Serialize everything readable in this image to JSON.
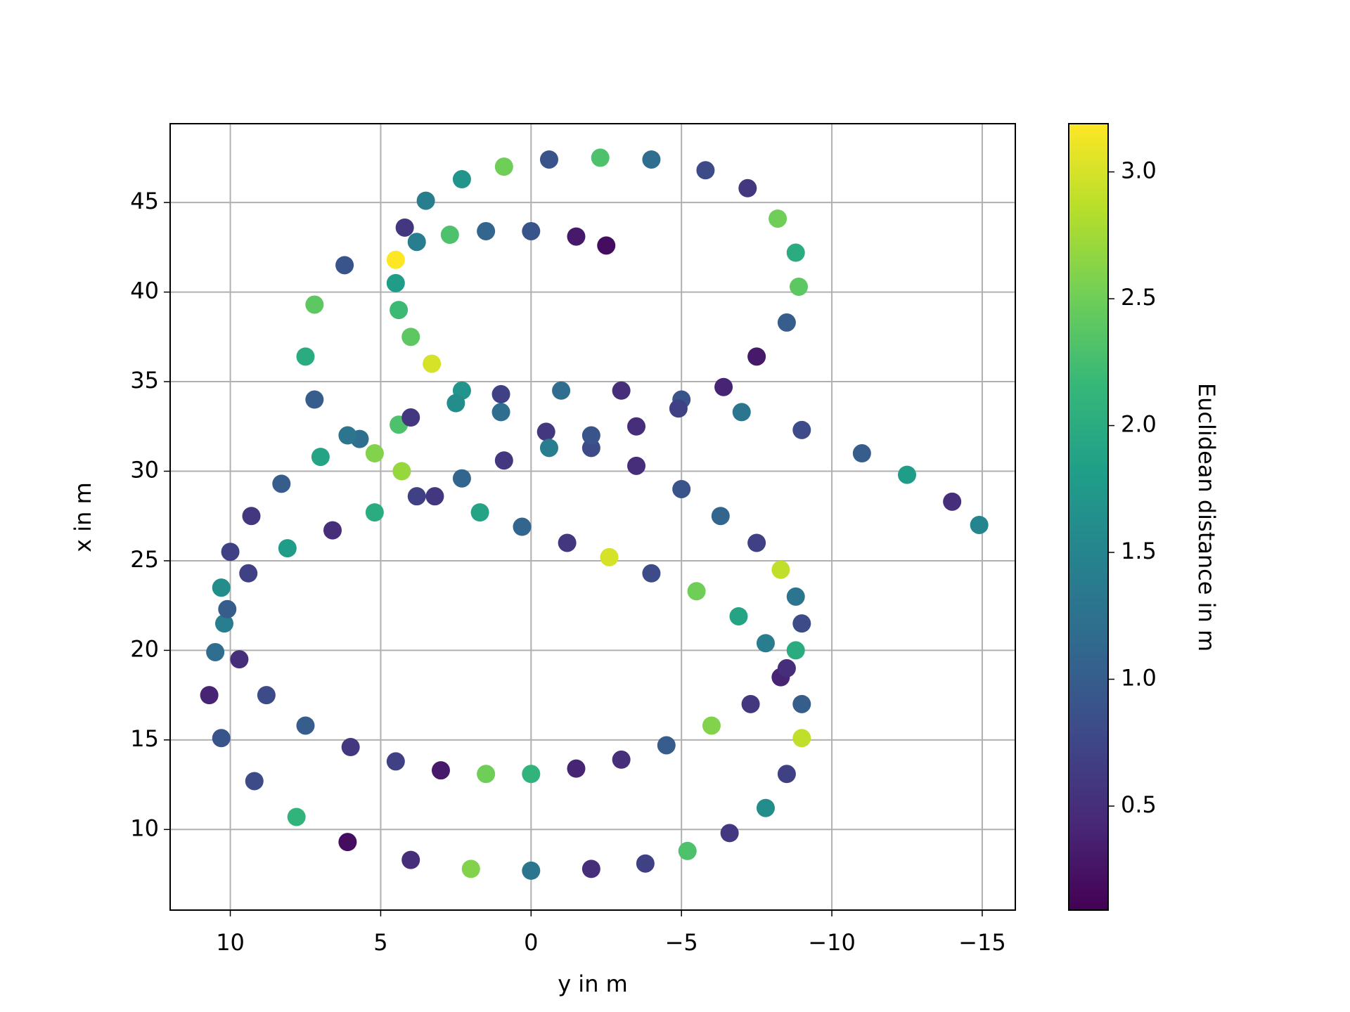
{
  "chart_data": {
    "type": "scatter",
    "x_label": "y in m",
    "y_label": "x in m",
    "colorbar_label": "Euclidean distance in m",
    "colormap": "viridis",
    "grid": true,
    "xlim": [
      12,
      -16.1
    ],
    "ylim": [
      5.5,
      49.4
    ],
    "clim": [
      0.09,
      3.19
    ],
    "xticks": [
      10,
      5,
      0,
      {
        "value": -5,
        "label": "−5"
      },
      {
        "value": -10,
        "label": "−10"
      },
      {
        "value": -15,
        "label": "−15"
      }
    ],
    "yticks": [
      10,
      15,
      20,
      25,
      30,
      35,
      40,
      45
    ],
    "cticks": [
      0.5,
      {
        "value": 1.0,
        "label": "1.0"
      },
      1.5,
      {
        "value": 2.0,
        "label": "2.0"
      },
      2.5,
      {
        "value": 3.0,
        "label": "3.0"
      }
    ],
    "series": [
      {
        "x": [
          -2.5,
          -1.5,
          0,
          1.5,
          2.7,
          3.8,
          4.5,
          4.5,
          4.4,
          4,
          3.3,
          2.3,
          1,
          -0.5,
          -2,
          -3.5,
          -5,
          -6.3,
          -7.5,
          -8.3,
          -8.8,
          -9,
          -8.8,
          -8.3,
          -7.3,
          -6,
          -4.5,
          -3,
          -1.5,
          0,
          1.5,
          3,
          4.5,
          6,
          7.5,
          8.8,
          9.7,
          10.2,
          10.3,
          10,
          9.3,
          8.3,
          7,
          5.7,
          4.4,
          4,
          2.5,
          1,
          -1,
          -3,
          -5,
          -7,
          -9,
          -11,
          -12.5,
          -14,
          -14.9,
          6.2,
          7.2,
          7.5,
          7.2,
          6.1,
          5.2,
          4.3,
          3.2,
          1.7,
          0.3,
          -1.2,
          -2.6,
          -4,
          -5.5,
          -6.9,
          -7.8,
          -8.5,
          -9,
          -9,
          -8.5,
          -7.8,
          -6.6,
          -5.2,
          -3.8,
          -2,
          0,
          2,
          4,
          6.1,
          7.8,
          9.2,
          10.3,
          10.7,
          10.5,
          10.1,
          9.4,
          8.1,
          6.6,
          5.2,
          3.8,
          2.3,
          0.9,
          -0.6,
          -2,
          -3.5,
          -4.9,
          -6.4,
          -7.5,
          -8.5,
          -8.9,
          -8.8,
          -8.2,
          -7.2,
          -5.8,
          -4,
          -2.3,
          -0.6,
          0.9,
          2.3,
          3.5,
          4.2
        ],
        "y": [
          42.6,
          43.1,
          43.4,
          43.4,
          43.2,
          42.8,
          41.8,
          40.5,
          39,
          37.5,
          36,
          34.5,
          33.3,
          32.2,
          31.3,
          30.3,
          29,
          27.5,
          26,
          24.5,
          23,
          21.5,
          20,
          18.5,
          17,
          15.8,
          14.7,
          13.9,
          13.4,
          13.1,
          13.1,
          13.3,
          13.8,
          14.6,
          15.8,
          17.5,
          19.5,
          21.5,
          23.5,
          25.5,
          27.5,
          29.3,
          30.8,
          31.8,
          32.6,
          33,
          33.8,
          34.3,
          34.5,
          34.5,
          34,
          33.3,
          32.3,
          31,
          29.8,
          28.3,
          27,
          41.5,
          39.3,
          36.4,
          34,
          32,
          31,
          30,
          28.6,
          27.7,
          26.9,
          26,
          25.2,
          24.3,
          23.3,
          21.9,
          20.4,
          19,
          17,
          15.1,
          13.1,
          11.2,
          9.8,
          8.8,
          8.1,
          7.8,
          7.7,
          7.8,
          8.3,
          9.3,
          10.7,
          12.7,
          15.1,
          17.5,
          19.9,
          22.3,
          24.3,
          25.7,
          26.7,
          27.7,
          28.6,
          29.6,
          30.6,
          31.3,
          32,
          32.5,
          33.5,
          34.7,
          36.4,
          38.3,
          40.3,
          42.2,
          44.1,
          45.8,
          46.8,
          47.4,
          47.5,
          47.4,
          47,
          46.3,
          45.1,
          43.6
        ],
        "values": [
          0.2,
          0.3,
          0.9,
          1.1,
          2.3,
          1.4,
          3.2,
          1.8,
          2.2,
          2.4,
          3.0,
          1.7,
          1.2,
          0.6,
          0.8,
          0.5,
          0.9,
          1.1,
          0.7,
          2.9,
          1.3,
          0.8,
          2.0,
          0.4,
          0.6,
          2.6,
          1.0,
          0.5,
          0.4,
          2.1,
          2.5,
          0.3,
          0.7,
          0.6,
          1.0,
          0.8,
          0.5,
          1.4,
          1.6,
          0.7,
          0.6,
          1.0,
          1.9,
          1.2,
          2.3,
          0.6,
          1.6,
          0.7,
          1.2,
          0.5,
          0.9,
          1.3,
          0.8,
          1.0,
          1.8,
          0.5,
          1.5,
          0.9,
          2.4,
          2.0,
          1.0,
          1.3,
          2.6,
          2.7,
          0.6,
          1.9,
          1.1,
          0.6,
          3.0,
          0.8,
          2.5,
          1.9,
          1.4,
          0.5,
          1.0,
          2.9,
          0.7,
          1.6,
          0.6,
          2.3,
          0.7,
          0.5,
          1.3,
          2.6,
          0.5,
          0.2,
          2.1,
          0.8,
          0.9,
          0.4,
          1.2,
          1.0,
          0.7,
          1.8,
          0.5,
          2.0,
          0.7,
          1.1,
          0.6,
          1.4,
          0.9,
          0.5,
          0.7,
          0.4,
          0.3,
          1.0,
          2.4,
          2.0,
          2.5,
          0.6,
          0.8,
          1.2,
          2.3,
          0.9,
          2.5,
          1.7,
          1.4,
          0.6
        ]
      }
    ]
  }
}
